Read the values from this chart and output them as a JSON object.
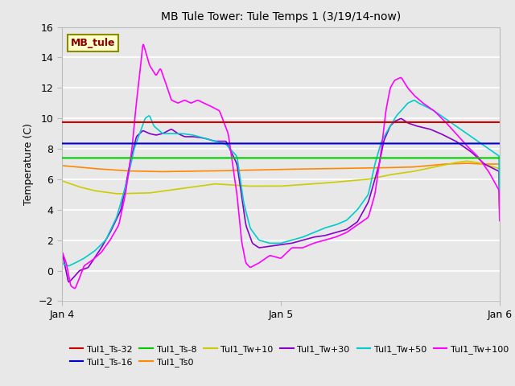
{
  "title": "MB Tule Tower: Tule Temps 1 (3/19/14-now)",
  "ylabel": "Temperature (C)",
  "xlim": [
    0,
    2.0
  ],
  "ylim": [
    -2,
    16
  ],
  "yticks": [
    -2,
    0,
    2,
    4,
    6,
    8,
    10,
    12,
    14,
    16
  ],
  "xtick_positions": [
    0,
    1.0,
    2.0
  ],
  "xtick_labels": [
    "Jan 4",
    "Jan 5",
    "Jan 6"
  ],
  "bg_color": "#e8e8e8",
  "grid_color": "#ffffff",
  "legend_label": "MB_tule",
  "ts32_color": "#cc0000",
  "ts16_color": "#0000cc",
  "ts8_color": "#00cc00",
  "ts0_color": "#ff8800",
  "tw10_color": "#cccc00",
  "tw30_color": "#8800cc",
  "tw50_color": "#00cccc",
  "tw100_color": "#ff00ff",
  "lw": 1.2,
  "title_fontsize": 10,
  "label_fontsize": 9,
  "tick_fontsize": 9,
  "legend_fontsize": 8
}
